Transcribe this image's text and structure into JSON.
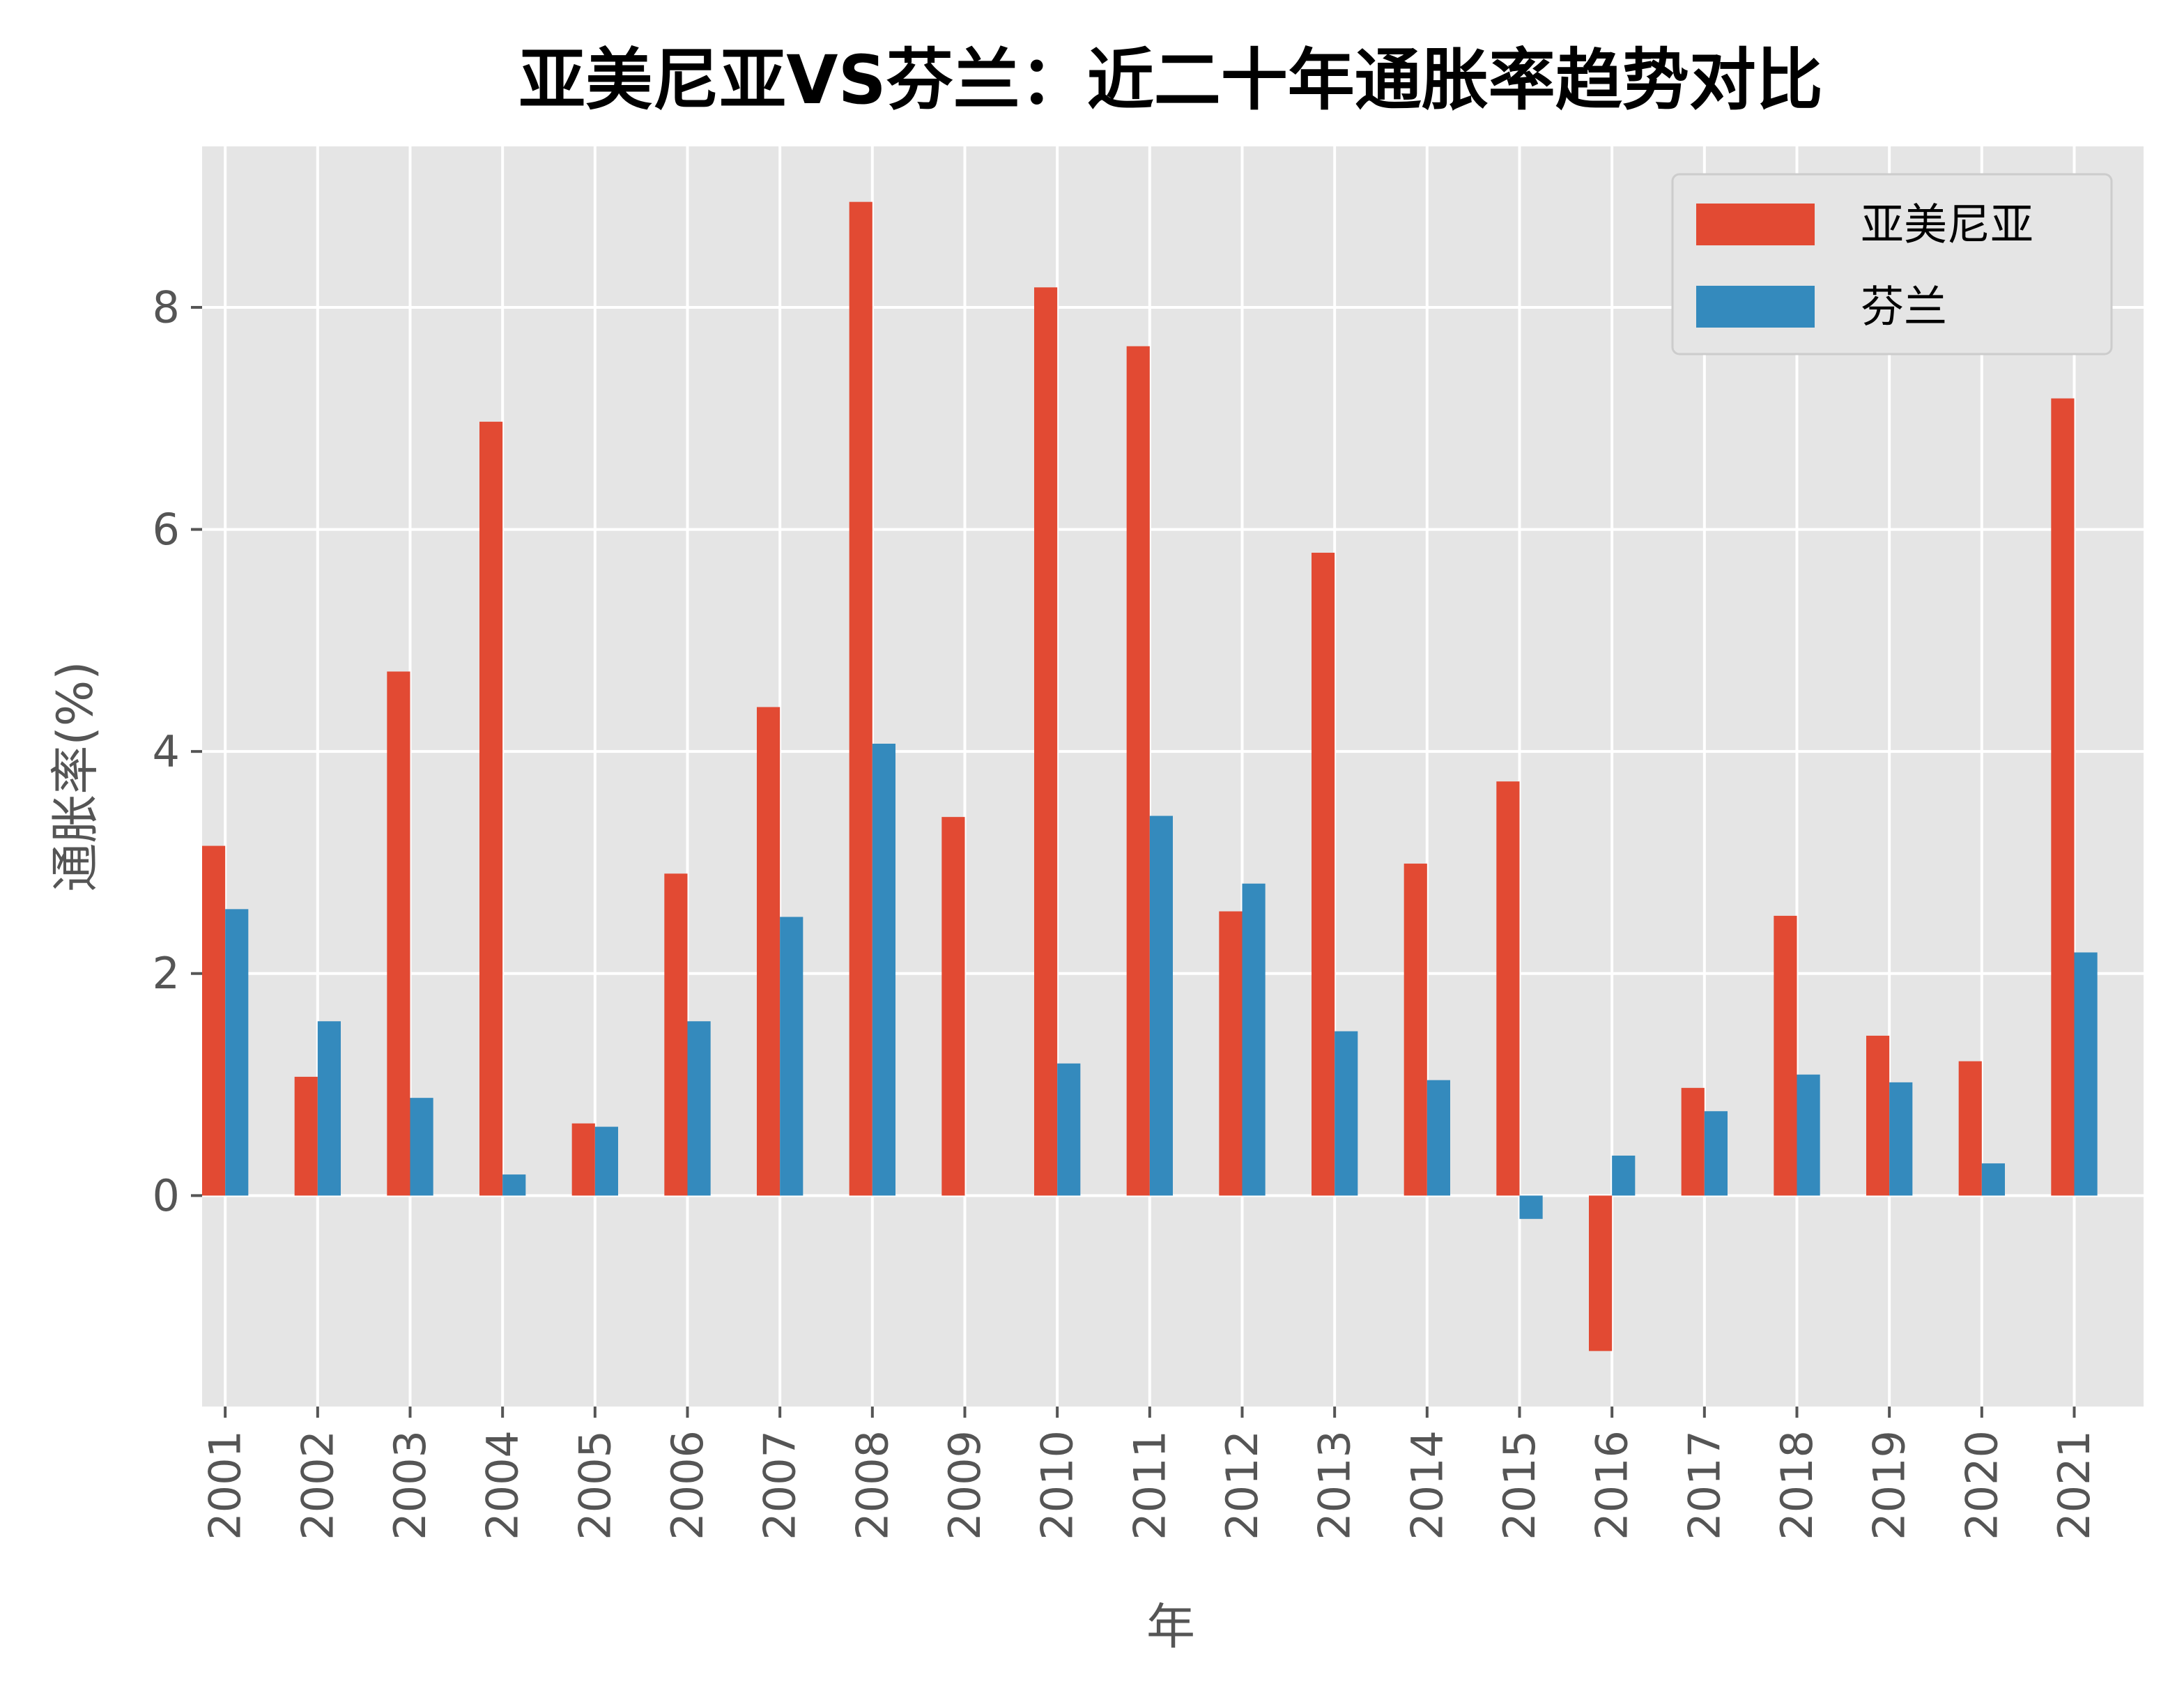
{
  "chart_data": {
    "type": "bar",
    "title": "亚美尼亚VS芬兰：近二十年通胀率趋势对比",
    "xlabel": "年",
    "ylabel": "通胀率(%)",
    "categories": [
      "2001",
      "2002",
      "2003",
      "2004",
      "2005",
      "2006",
      "2007",
      "2008",
      "2009",
      "2010",
      "2011",
      "2012",
      "2013",
      "2014",
      "2015",
      "2016",
      "2017",
      "2018",
      "2019",
      "2020",
      "2021"
    ],
    "series": [
      {
        "name": "亚美尼亚",
        "color": "#E24A33",
        "values": [
          3.15,
          1.07,
          4.72,
          6.97,
          0.65,
          2.9,
          4.4,
          8.95,
          3.41,
          8.18,
          7.65,
          2.56,
          5.79,
          2.99,
          3.73,
          -1.4,
          0.97,
          2.52,
          1.44,
          1.21,
          7.18
        ]
      },
      {
        "name": "芬兰",
        "color": "#348ABD",
        "values": [
          2.58,
          1.57,
          0.88,
          0.19,
          0.62,
          1.57,
          2.51,
          4.07,
          0.0,
          1.19,
          3.42,
          2.81,
          1.48,
          1.04,
          -0.21,
          0.36,
          0.76,
          1.09,
          1.02,
          0.29,
          2.19
        ]
      }
    ],
    "yticks": [
      0,
      2,
      4,
      6,
      8
    ],
    "ylim": [
      -1.9,
      9.45
    ],
    "grid": true,
    "legend": "top-right",
    "style": {
      "background": "#E5E5E5",
      "grid_color": "#FFFFFF"
    }
  }
}
